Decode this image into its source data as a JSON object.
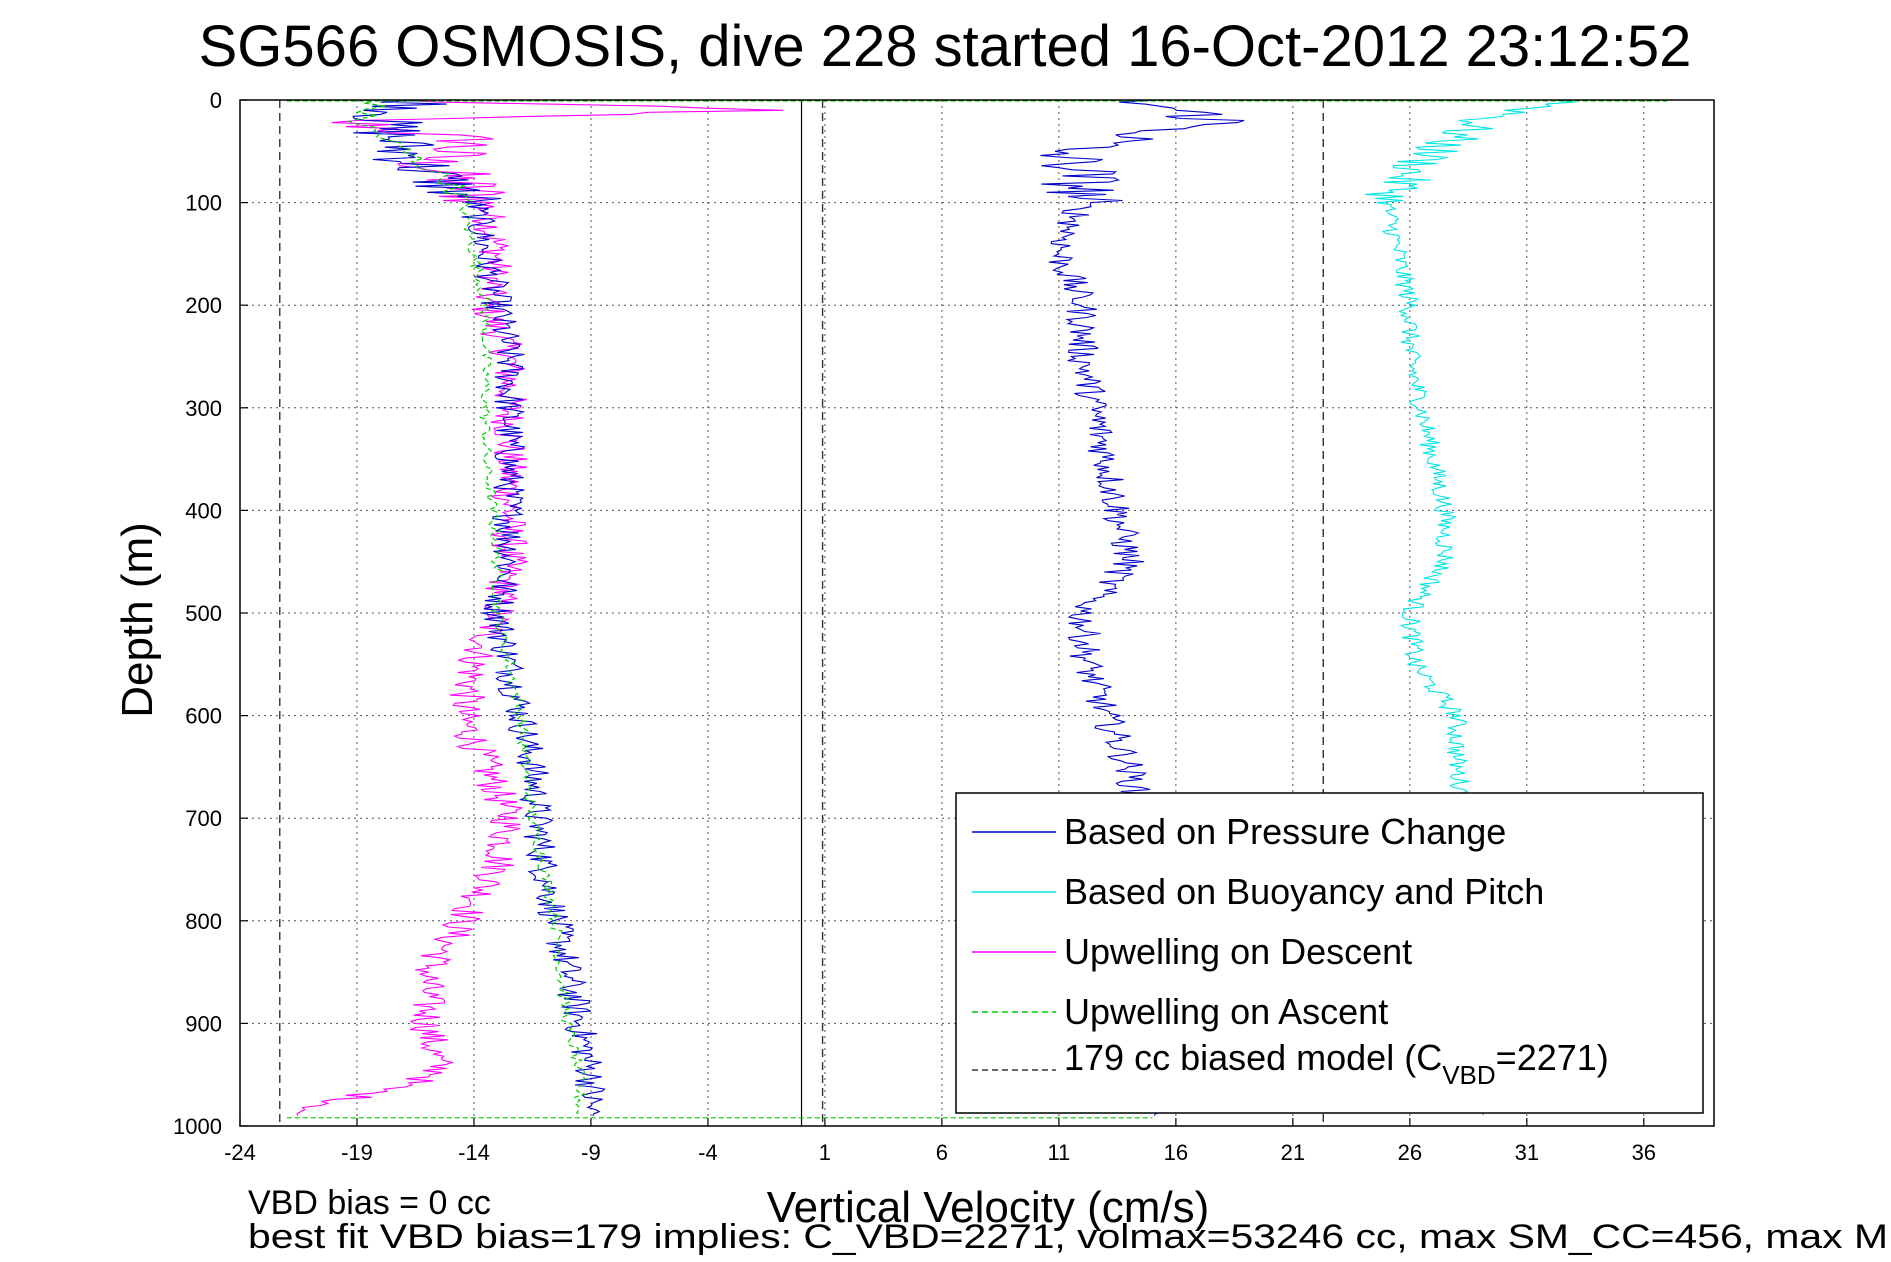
{
  "chart_data": {
    "type": "line",
    "title": "SG566 OSMOSIS, dive 228 started 16-Oct-2012 23:12:52",
    "xlabel": "Vertical Velocity (cm/s)",
    "ylabel": "Depth (m)",
    "xlim": [
      -24,
      39
    ],
    "ylim": [
      0,
      1000
    ],
    "y_reversed": true,
    "x_ticks": [
      "-24",
      "-19",
      "-14",
      "-9",
      "-4",
      "1",
      "6",
      "11",
      "16",
      "21",
      "26",
      "31",
      "36"
    ],
    "y_ticks": [
      "0",
      "100",
      "200",
      "300",
      "400",
      "500",
      "600",
      "700",
      "800",
      "900",
      "1000"
    ],
    "grid": true,
    "legend_position": "bottom-right",
    "colors": {
      "pressure": "#0000cc",
      "buoyancy": "#00e5e5",
      "up_descent": "#ff00ff",
      "up_ascent": "#00cc00",
      "model": "#333333"
    },
    "legend": [
      {
        "label": "Based on Pressure Change"
      },
      {
        "label": "Based on Buoyancy and Pitch"
      },
      {
        "label": "Upwelling on Descent"
      },
      {
        "label": "Upwelling on Ascent"
      },
      {
        "label_main": "179 cc biased model (C",
        "label_sub": "VBD",
        "label_end": "=2271)"
      }
    ],
    "vertical_lines": {
      "zero_line": 0,
      "model_lines": [
        -22.3,
        0.9,
        22.3
      ]
    },
    "series": [
      {
        "name": "Based on Pressure Change",
        "depth": [
          0,
          20,
          50,
          70,
          100,
          150,
          200,
          250,
          300,
          350,
          400,
          450,
          500,
          550,
          600,
          650,
          700,
          750,
          800,
          850,
          900,
          950,
          990
        ],
        "descent_x": [
          -16,
          -18,
          -17,
          -16,
          -14,
          -13.5,
          -13,
          -12.5,
          -12.5,
          -12.5,
          -12.5,
          -12.5,
          -13,
          -12.5,
          -12,
          -11.5,
          -11.3,
          -11,
          -10.5,
          -10,
          -9.5,
          -9,
          -9
        ],
        "ascent_x": [
          14,
          18,
          11,
          12,
          12,
          11,
          12,
          12,
          12.5,
          13,
          13.5,
          14,
          12,
          12.2,
          13,
          14,
          14.5,
          14.8,
          15,
          15,
          15,
          15,
          15
        ]
      },
      {
        "name": "Based on Buoyancy and Pitch",
        "depth": [
          0,
          20,
          50,
          70,
          100,
          150,
          200,
          250,
          300,
          350,
          400,
          450,
          500,
          550,
          600,
          650,
          700,
          750,
          800,
          850,
          900,
          950,
          990
        ],
        "ascent_x": [
          33,
          29,
          27,
          26,
          25,
          25.5,
          26,
          26,
          26.5,
          27,
          27.5,
          27.5,
          26,
          26.2,
          28,
          28,
          28.5,
          28.7,
          28.8,
          28.9,
          29,
          29,
          29
        ]
      },
      {
        "name": "Upwelling on Descent",
        "depth": [
          0,
          10,
          20,
          40,
          60,
          100,
          150,
          200,
          250,
          300,
          350,
          400,
          450,
          500,
          550,
          600,
          650,
          700,
          750,
          800,
          850,
          900,
          950,
          990
        ],
        "values": [
          -18,
          -1.5,
          -20,
          -14,
          -16,
          -13.5,
          -13,
          -13.5,
          -12.5,
          -12.5,
          -12.5,
          -12.5,
          -12.5,
          -13,
          -14,
          -14.5,
          -13.5,
          -12.5,
          -13,
          -14.5,
          -16,
          -16,
          -15.5,
          -22
        ]
      },
      {
        "name": "Upwelling on Ascent",
        "depth": [
          0,
          20,
          50,
          80,
          100,
          150,
          200,
          250,
          300,
          350,
          400,
          450,
          500,
          550,
          600,
          650,
          700,
          750,
          800,
          850,
          900,
          950,
          990
        ],
        "values": [
          -18,
          -19,
          -17,
          -15,
          -14.5,
          -14,
          -13.5,
          -13.5,
          -13.5,
          -13.5,
          -13.2,
          -13,
          -13,
          -12.5,
          -12,
          -11.8,
          -11.5,
          -11,
          -10.5,
          -10.3,
          -10,
          -9.5,
          -9.5
        ]
      }
    ]
  },
  "footer": {
    "line1": "VBD bias = 0 cc",
    "line2": "best fit VBD bias=179 implies: C_VBD=2271, volmax=53246 cc, max SM_CC=456, max M"
  }
}
